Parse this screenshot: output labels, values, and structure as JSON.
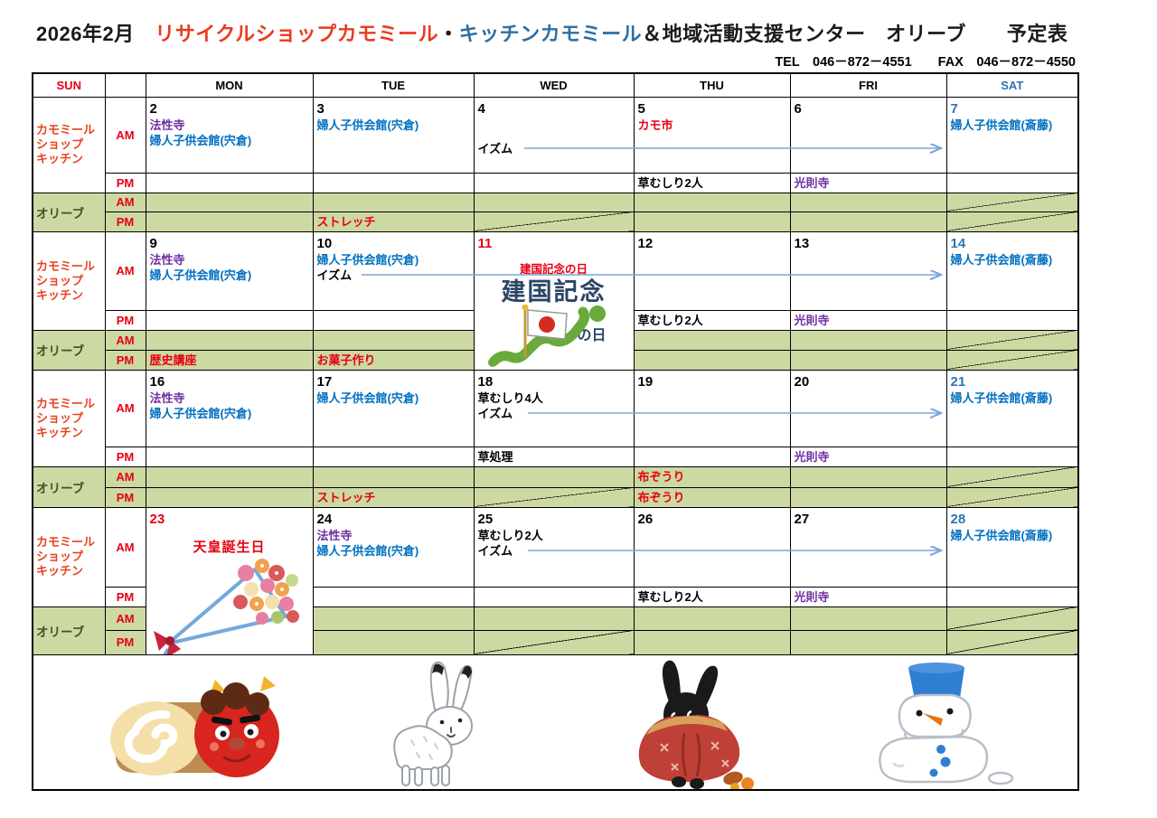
{
  "page": {
    "title_year_month": "2026年2月",
    "title_shop": "リサイクルショップカモミール",
    "title_dot": "・",
    "title_kitchen": "キッチンカモミール",
    "title_rest": "＆地域活動支援センター　オリーブ　　予定表",
    "contact": "TEL　046－872－4551　　FAX　046－872－4550"
  },
  "colors": {
    "black": "#000000",
    "red": "#e60012",
    "purple": "#7030a0",
    "blue_event": "#0070c0",
    "sat_blue": "#2e74b5",
    "sun_red": "#e60012",
    "shop_label": "#e8431f",
    "olive_label": "#375623",
    "olive_bg": "#cdd9a2",
    "arrow": "#7ba7d9",
    "title_orange": "#e83c1e",
    "title_blue": "#2e6fa3",
    "kenkoku_navy": "#2b4563",
    "grid": "#000000"
  },
  "calendar": {
    "day_headers": [
      {
        "label": "SUN",
        "c": "sun_red"
      },
      {
        "label": ""
      },
      {
        "label": "MON"
      },
      {
        "label": "TUE"
      },
      {
        "label": "WED"
      },
      {
        "label": "THU"
      },
      {
        "label": "FRI"
      },
      {
        "label": "SAT",
        "c": "sat_blue"
      }
    ],
    "row_labels": {
      "shop": [
        "カモミール",
        "ショップ",
        "キッチン"
      ],
      "olive": "オリーブ",
      "am": "AM",
      "pm": "PM"
    },
    "holidays": {
      "kenkoku": {
        "label": "建国記念の日",
        "logo_main": "建国記念",
        "logo_sub": "の日"
      },
      "tennou": {
        "label": "天皇誕生日"
      }
    },
    "weeks": [
      {
        "days": [
          {
            "date": "2",
            "am": [
              {
                "t": "法性寺",
                "c": "purple"
              },
              {
                "t": "婦人子供会館(宍倉)",
                "c": "blue_event"
              }
            ]
          },
          {
            "date": "3",
            "am": [
              {
                "t": "婦人子供会館(宍倉)",
                "c": "blue_event"
              }
            ],
            "olive_pm": [
              {
                "t": "ストレッチ",
                "c": "red"
              }
            ]
          },
          {
            "date": "4",
            "am": [
              {
                "t": "イズム",
                "c": "black",
                "gap": true,
                "arrow": true
              }
            ],
            "diag_olive_pm": true
          },
          {
            "date": "5",
            "am": [
              {
                "t": "カモ市",
                "c": "red"
              }
            ],
            "pm": [
              {
                "t": "草むしり2人",
                "c": "black"
              }
            ]
          },
          {
            "date": "6",
            "pm": [
              {
                "t": "光則寺",
                "c": "purple"
              }
            ]
          },
          {
            "date": "7",
            "date_c": "sat_blue",
            "am": [
              {
                "t": "婦人子供会館(斎藤)",
                "c": "blue_event"
              }
            ],
            "diag_olive_am": true,
            "diag_olive_pm": true
          }
        ]
      },
      {
        "days": [
          {
            "date": "9",
            "am": [
              {
                "t": "法性寺",
                "c": "purple"
              },
              {
                "t": "婦人子供会館(宍倉)",
                "c": "blue_event"
              }
            ],
            "olive_pm": [
              {
                "t": "歴史講座",
                "c": "red"
              }
            ]
          },
          {
            "date": "10",
            "am": [
              {
                "t": "婦人子供会館(宍倉)",
                "c": "blue_event"
              },
              {
                "t": "イズム",
                "c": "black",
                "arrow": true
              }
            ],
            "olive_pm": [
              {
                "t": "お菓子作り",
                "c": "red"
              }
            ]
          },
          {
            "date": "11",
            "date_c": "red",
            "merged": true,
            "holiday": "kenkoku"
          },
          {
            "date": "12",
            "pm": [
              {
                "t": "草むしり2人",
                "c": "black"
              }
            ]
          },
          {
            "date": "13",
            "pm": [
              {
                "t": "光則寺",
                "c": "purple"
              }
            ]
          },
          {
            "date": "14",
            "date_c": "sat_blue",
            "am": [
              {
                "t": "婦人子供会館(斎藤)",
                "c": "blue_event"
              }
            ],
            "diag_olive_am": true,
            "diag_olive_pm": true
          }
        ]
      },
      {
        "days": [
          {
            "date": "16",
            "am": [
              {
                "t": "法性寺",
                "c": "purple"
              },
              {
                "t": "婦人子供会館(宍倉)",
                "c": "blue_event"
              }
            ]
          },
          {
            "date": "17",
            "am": [
              {
                "t": "婦人子供会館(宍倉)",
                "c": "blue_event"
              }
            ],
            "olive_pm": [
              {
                "t": "ストレッチ",
                "c": "red"
              }
            ]
          },
          {
            "date": "18",
            "am": [
              {
                "t": "草むしり4人",
                "c": "black"
              },
              {
                "t": "イズム",
                "c": "black",
                "arrow": true
              }
            ],
            "pm": [
              {
                "t": "草処理",
                "c": "black"
              }
            ],
            "diag_olive_pm": true
          },
          {
            "date": "19",
            "olive_am": [
              {
                "t": "布ぞうり",
                "c": "red"
              }
            ],
            "olive_pm": [
              {
                "t": "布ぞうり",
                "c": "red"
              }
            ]
          },
          {
            "date": "20",
            "pm": [
              {
                "t": "光則寺",
                "c": "purple"
              }
            ]
          },
          {
            "date": "21",
            "date_c": "sat_blue",
            "am": [
              {
                "t": "婦人子供会館(斎藤)",
                "c": "blue_event"
              }
            ],
            "diag_olive_am": true,
            "diag_olive_pm": true
          }
        ]
      },
      {
        "days": [
          {
            "date": "23",
            "date_c": "red",
            "merged": true,
            "holiday": "tennou"
          },
          {
            "date": "24",
            "am": [
              {
                "t": "法性寺",
                "c": "purple"
              },
              {
                "t": "婦人子供会館(宍倉)",
                "c": "blue_event"
              }
            ]
          },
          {
            "date": "25",
            "am": [
              {
                "t": "草むしり2人",
                "c": "black"
              },
              {
                "t": "イズム",
                "c": "black",
                "arrow": true
              }
            ],
            "diag_olive_pm": true
          },
          {
            "date": "26",
            "pm": [
              {
                "t": "草むしり2人",
                "c": "black"
              }
            ]
          },
          {
            "date": "27",
            "pm": [
              {
                "t": "光則寺",
                "c": "purple"
              }
            ]
          },
          {
            "date": "28",
            "date_c": "sat_blue",
            "am": [
              {
                "t": "婦人子供会館(斎藤)",
                "c": "blue_event"
              }
            ],
            "diag_olive_am": true,
            "diag_olive_pm": true
          }
        ]
      }
    ]
  },
  "footer_icons": [
    {
      "name": "oni-roll-cake-illustration"
    },
    {
      "name": "white-hare-illustration"
    },
    {
      "name": "black-rabbit-furoshiki-illustration"
    },
    {
      "name": "melting-snowman-illustration"
    }
  ]
}
